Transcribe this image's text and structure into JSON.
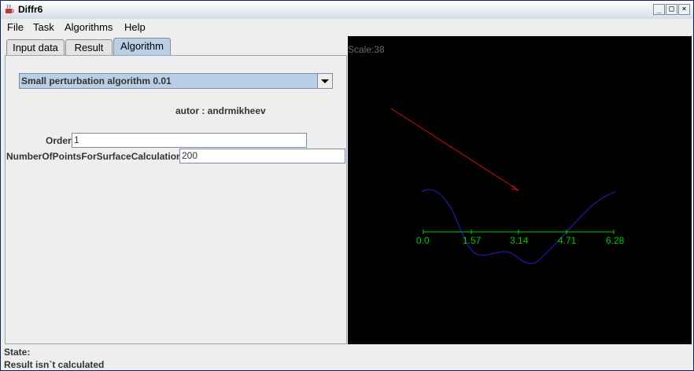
{
  "window": {
    "title": "Diffr6"
  },
  "menubar": {
    "items": [
      "File",
      "Task",
      "Algorithms",
      "Help"
    ]
  },
  "tabs": [
    "Input data",
    "Result",
    "Algorithm"
  ],
  "algorithm": {
    "selected": "Small perturbation algorithm 0.01",
    "author": "autor : andrmikheev",
    "order_label": "Order",
    "order_value": "1",
    "points_label": "NumberOfPointsForSurfaceCalculation",
    "points_value": "200"
  },
  "plot": {
    "scale_text": "Scale:38",
    "ticks": [
      "0.0",
      "1.57",
      "3.14",
      "4.71",
      "6.28"
    ],
    "colors": {
      "axis": "#00cc00",
      "curve": "#1a1aaa",
      "arrow": "#cc1111",
      "background": "#000000"
    }
  },
  "status": {
    "label": "State:",
    "message": "Result isn`t calculated"
  }
}
